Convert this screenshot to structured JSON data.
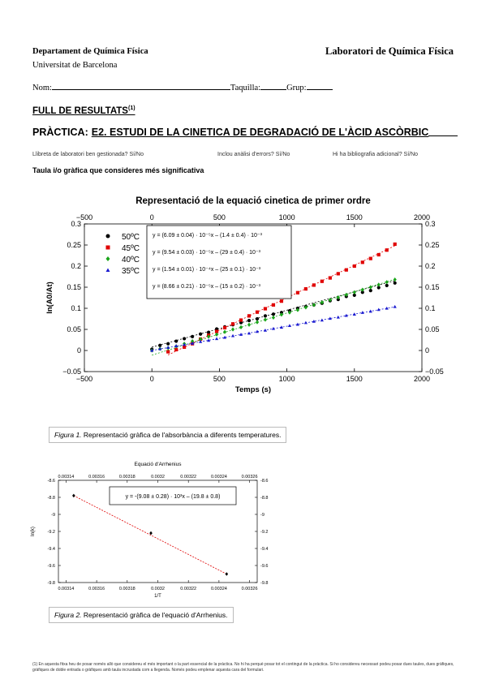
{
  "header": {
    "department": "Departament de Química Física",
    "university": "Universitat de Barcelona",
    "lab": "Laboratori de Química Física"
  },
  "form": {
    "nom_label": "Nom:",
    "taquilla_label": "Taquilla:",
    "grup_label": "Grup:"
  },
  "section": {
    "full": "FULL DE RESULTATS",
    "full_sup": "(1)",
    "practica_label": "PRÀCTICA:",
    "practica_title": "E2. ESTUDI DE LA CINETICA DE DEGRADACIÓ DE L'ÀCID ASCÒRBIC"
  },
  "questions": {
    "q1": "Llibreta de laboratori ben gestionada?  Sí/No",
    "q2": "Inclou anàlisi d'errors? Sí/No",
    "q3": "Hi ha bibliografia adicional? Sí/No"
  },
  "taula": "Taula i/o gràfica que consideres més significativa",
  "figure1": {
    "caption_label": "Figura 1.",
    "caption_text": " Representació gràfica de l'absorbància a diferents temperatures."
  },
  "figure2": {
    "caption_label": "Figura 2.",
    "caption_text": " Representació gràfica de l'equació d'Arrhenius."
  },
  "footnote": "(1) En aquesta fitxa heu de posar només allò que considereu el més important o la part essencial de la pràctica. No hi ha perquè posar tot el contingut de la pràctica. Si ho considereu necessari podeu posar dues taules, dues gràfiques, gràfiques de doble entrada o gràfiques amb taula incrustada com a llegenda. Només podeu emplenar aquesta cara del formulari.",
  "chart_data": [
    {
      "type": "scatter",
      "title": "Representació de la equació cinetica de primer ordre",
      "xlabel": "Temps (s)",
      "ylabel": "ln(A0/At)",
      "xlim": [
        -500,
        2000
      ],
      "ylim": [
        -0.05,
        0.3
      ],
      "x_ticks": [
        "−500",
        "0",
        "500",
        "1000",
        "1500",
        "2000"
      ],
      "y_ticks": [
        "−0.05",
        "0",
        "0.05",
        "0.1",
        "0.15",
        "0.2",
        "0.25",
        "0.3"
      ],
      "legend": "top-left",
      "series": [
        {
          "name": "50ºC",
          "color": "#000000",
          "marker": "circle",
          "slope": 8.75e-05,
          "intercept": 0.008,
          "x": [
            0,
            60,
            120,
            180,
            240,
            300,
            360,
            420,
            480,
            540,
            600,
            660,
            720,
            780,
            840,
            900,
            960,
            1020,
            1080,
            1140,
            1200,
            1260,
            1320,
            1380,
            1440,
            1500,
            1560,
            1620,
            1680,
            1740,
            1800
          ],
          "y": [
            0.003,
            0.012,
            0.016,
            0.022,
            0.028,
            0.033,
            0.039,
            0.043,
            0.051,
            0.056,
            0.061,
            0.066,
            0.071,
            0.075,
            0.082,
            0.086,
            0.09,
            0.094,
            0.1,
            0.104,
            0.108,
            0.112,
            0.118,
            0.121,
            0.128,
            0.131,
            0.138,
            0.142,
            0.149,
            0.154,
            0.16
          ]
        },
        {
          "name": "45ºC",
          "color": "#e00000",
          "marker": "square",
          "slope": 0.000154,
          "intercept": -0.029,
          "x": [
            120,
            180,
            240,
            300,
            360,
            420,
            480,
            540,
            600,
            660,
            720,
            780,
            840,
            900,
            960,
            1020,
            1080,
            1140,
            1200,
            1260,
            1320,
            1380,
            1440,
            1500,
            1560,
            1620,
            1680,
            1740,
            1800
          ],
          "y": [
            -0.003,
            0.002,
            0.008,
            0.016,
            0.027,
            0.036,
            0.045,
            0.054,
            0.063,
            0.072,
            0.082,
            0.091,
            0.099,
            0.108,
            0.117,
            0.127,
            0.137,
            0.146,
            0.155,
            0.164,
            0.172,
            0.182,
            0.191,
            0.2,
            0.209,
            0.218,
            0.227,
            0.238,
            0.252
          ]
        },
        {
          "name": "40ºC",
          "color": "#1aa51a",
          "marker": "diamond",
          "slope": 0.0001,
          "intercept": -0.011,
          "x": [
            0,
            60,
            120,
            180,
            240,
            300,
            360,
            420,
            480,
            540,
            600,
            660,
            720,
            780,
            840,
            900,
            960,
            1020,
            1080,
            1140,
            1200,
            1260,
            1320,
            1380,
            1440,
            1500,
            1560,
            1620,
            1680,
            1740,
            1800
          ],
          "y": [
            0.0,
            0.004,
            0.006,
            0.01,
            0.016,
            0.022,
            0.027,
            0.033,
            0.038,
            0.044,
            0.05,
            0.055,
            0.061,
            0.067,
            0.073,
            0.078,
            0.085,
            0.09,
            0.096,
            0.102,
            0.108,
            0.114,
            0.12,
            0.126,
            0.132,
            0.138,
            0.144,
            0.15,
            0.156,
            0.162,
            0.168
          ]
        },
        {
          "name": "35ºC",
          "color": "#1a1ad0",
          "marker": "triangle",
          "slope": 5.75e-05,
          "intercept": 0.0,
          "x": [
            0,
            60,
            120,
            180,
            240,
            300,
            360,
            420,
            480,
            540,
            600,
            660,
            720,
            780,
            840,
            900,
            960,
            1020,
            1080,
            1140,
            1200,
            1260,
            1320,
            1380,
            1440,
            1500,
            1560,
            1620,
            1680,
            1740,
            1800
          ],
          "y": [
            0.0,
            0.004,
            0.007,
            0.011,
            0.014,
            0.017,
            0.021,
            0.024,
            0.028,
            0.031,
            0.035,
            0.038,
            0.041,
            0.045,
            0.048,
            0.052,
            0.055,
            0.059,
            0.062,
            0.066,
            0.069,
            0.072,
            0.076,
            0.079,
            0.083,
            0.086,
            0.09,
            0.093,
            0.097,
            0.1,
            0.104
          ]
        }
      ],
      "equations": [
        "y = (6.09 ± 0.04) · 10⁻⁵x – (1.4 ± 0.4) · 10⁻³",
        "y = (9.54 ± 0.03) · 10⁻⁵x – (29 ± 0.4) · 10⁻³",
        "y = (1.54 ± 0.01) · 10⁻⁴x – (25 ± 0.1) · 10⁻³",
        "y = (8.66 ± 0.21) · 10⁻⁵x – (15 ± 0.2) · 10⁻³"
      ]
    },
    {
      "type": "scatter",
      "title": "Equació d'Arrhenius",
      "xlabel": "1/T",
      "ylabel": "ln(k)",
      "xlim": [
        0.003135,
        0.003265
      ],
      "ylim": [
        -9.8,
        -8.6
      ],
      "x_ticks_bottom": [
        "0.00314",
        "0.00316",
        "0.00318",
        "0.0032",
        "0.00322",
        "0.00324",
        "0.00326"
      ],
      "x_ticks_top": [
        "0.00314",
        "0.00316",
        "0.00318",
        "0.0032",
        "0.00322",
        "0.00324",
        "0.00326"
      ],
      "y_ticks": [
        "-8.6",
        "-8.8",
        "-9",
        "-9.2",
        "-9.4",
        "-9.6",
        "-9.8"
      ],
      "series": [
        {
          "name": "",
          "color": "#000000",
          "marker": "diamond",
          "x": [
            0.003145,
            0.0031955,
            0.003245
          ],
          "y": [
            -8.78,
            -9.22,
            -9.7
          ]
        }
      ],
      "fit": {
        "color": "#e00000",
        "x": [
          0.003145,
          0.003245
        ],
        "y": [
          -8.78,
          -9.7
        ]
      },
      "equation": "y = -(9.08 ± 0.28) · 10³x – (19.8 ± 0.8)"
    }
  ]
}
